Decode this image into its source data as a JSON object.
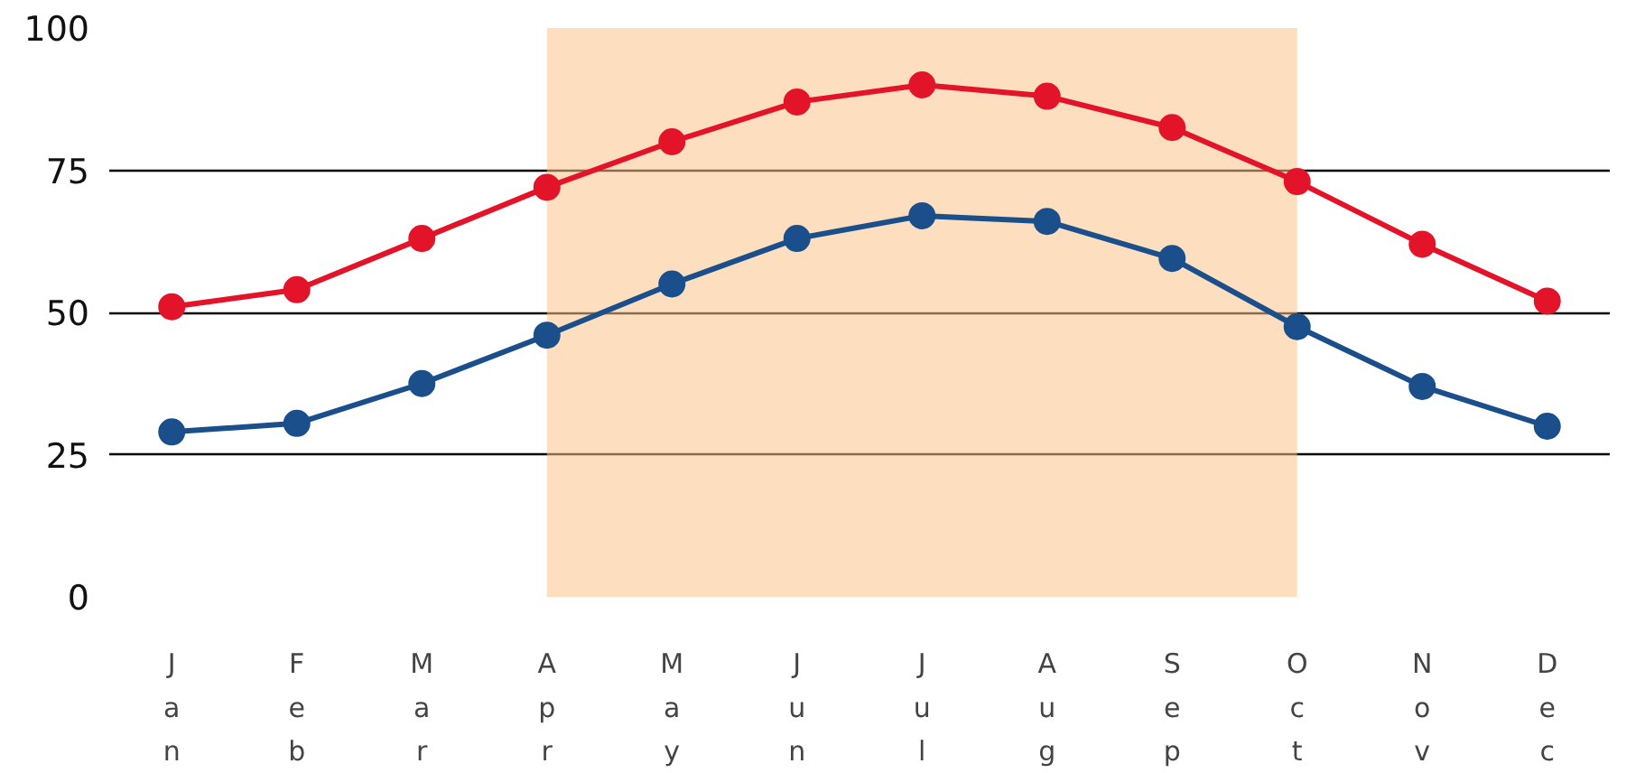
{
  "chart_data": {
    "type": "line",
    "categories": [
      "Jan",
      "Feb",
      "Mar",
      "Apr",
      "May",
      "Jun",
      "Jul",
      "Aug",
      "Sep",
      "Oct",
      "Nov",
      "Dec"
    ],
    "series": [
      {
        "color": "#e3142a",
        "values": [
          51,
          54,
          63,
          72,
          80,
          87,
          90,
          88,
          82.5,
          73,
          62,
          52
        ]
      },
      {
        "color": "#1a4f8c",
        "values": [
          29,
          30.5,
          37.5,
          46,
          55,
          63,
          67,
          66,
          59.5,
          47.5,
          37,
          30
        ]
      }
    ],
    "ylim": [
      0,
      100
    ],
    "yticks": [
      0,
      25,
      50,
      75,
      100
    ],
    "grid": "y",
    "marker": "circle",
    "line_style": "solid",
    "bands": [
      {
        "axis": "x",
        "from": "Apr",
        "to": "Oct",
        "color": "#fcc48a"
      }
    ]
  }
}
